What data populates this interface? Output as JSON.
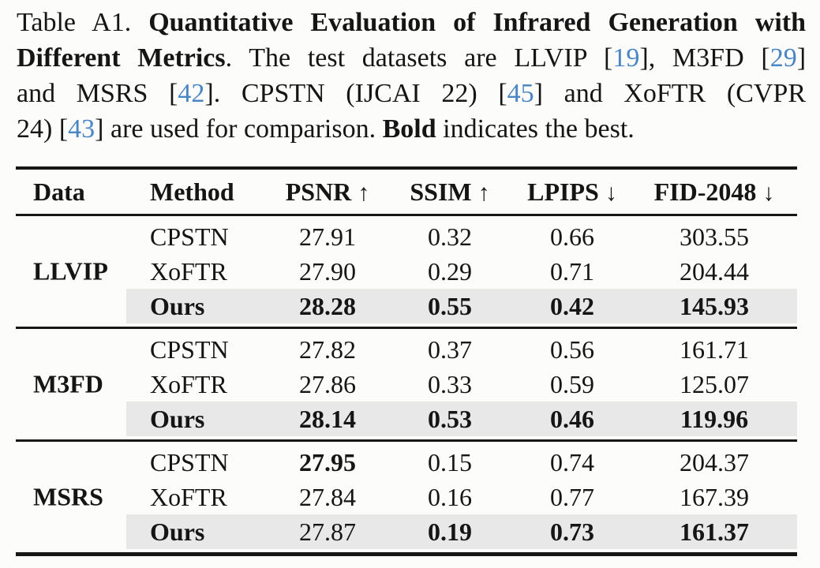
{
  "caption": {
    "lines": [
      {
        "segments": [
          {
            "t": "Table A1. "
          },
          {
            "t": "Quantitative Evaluation of Infrared Generation with"
          }
        ]
      },
      {
        "segments": [
          {
            "t": "Different Metrics"
          },
          {
            "t": ". The test datasets are LLVIP ["
          },
          {
            "t": "19"
          },
          {
            "t": "], M3FD ["
          },
          {
            "t": "29"
          },
          {
            "t": "]"
          }
        ]
      },
      {
        "segments": [
          {
            "t": "and MSRS ["
          },
          {
            "t": "42"
          },
          {
            "t": "]. CPSTN (IJCAI 22) ["
          },
          {
            "t": "45"
          },
          {
            "t": "] and XoFTR (CVPR"
          }
        ]
      },
      {
        "segments": [
          {
            "t": "24) ["
          },
          {
            "t": "43"
          },
          {
            "t": "] are used for comparison. "
          },
          {
            "t": "Bold"
          },
          {
            "t": " indicates the best."
          }
        ]
      }
    ]
  },
  "table": {
    "headers": [
      {
        "label": "Data",
        "arrow": ""
      },
      {
        "label": "Method",
        "arrow": ""
      },
      {
        "label": "PSNR",
        "arrow": "↑"
      },
      {
        "label": "SSIM",
        "arrow": "↑"
      },
      {
        "label": "LPIPS",
        "arrow": "↓"
      },
      {
        "label": "FID-2048",
        "arrow": "↓"
      }
    ],
    "highlight_color": "#e8e8e8",
    "citation_color": "#4a86c4",
    "sections": [
      {
        "dataset": "LLVIP",
        "rows": [
          {
            "highlight": false,
            "method": {
              "v": "CPSTN",
              "b": false
            },
            "psnr": {
              "v": "27.91",
              "b": false
            },
            "ssim": {
              "v": "0.32",
              "b": false
            },
            "lpips": {
              "v": "0.66",
              "b": false
            },
            "fid": {
              "v": "303.55",
              "b": false
            }
          },
          {
            "highlight": false,
            "method": {
              "v": "XoFTR",
              "b": false
            },
            "psnr": {
              "v": "27.90",
              "b": false
            },
            "ssim": {
              "v": "0.29",
              "b": false
            },
            "lpips": {
              "v": "0.71",
              "b": false
            },
            "fid": {
              "v": "204.44",
              "b": false
            }
          },
          {
            "highlight": true,
            "method": {
              "v": "Ours",
              "b": true
            },
            "psnr": {
              "v": "28.28",
              "b": true
            },
            "ssim": {
              "v": "0.55",
              "b": true
            },
            "lpips": {
              "v": "0.42",
              "b": true
            },
            "fid": {
              "v": "145.93",
              "b": true
            }
          }
        ]
      },
      {
        "dataset": "M3FD",
        "rows": [
          {
            "highlight": false,
            "method": {
              "v": "CPSTN",
              "b": false
            },
            "psnr": {
              "v": "27.82",
              "b": false
            },
            "ssim": {
              "v": "0.37",
              "b": false
            },
            "lpips": {
              "v": "0.56",
              "b": false
            },
            "fid": {
              "v": "161.71",
              "b": false
            }
          },
          {
            "highlight": false,
            "method": {
              "v": "XoFTR",
              "b": false
            },
            "psnr": {
              "v": "27.86",
              "b": false
            },
            "ssim": {
              "v": "0.33",
              "b": false
            },
            "lpips": {
              "v": "0.59",
              "b": false
            },
            "fid": {
              "v": "125.07",
              "b": false
            }
          },
          {
            "highlight": true,
            "method": {
              "v": "Ours",
              "b": true
            },
            "psnr": {
              "v": "28.14",
              "b": true
            },
            "ssim": {
              "v": "0.53",
              "b": true
            },
            "lpips": {
              "v": "0.46",
              "b": true
            },
            "fid": {
              "v": "119.96",
              "b": true
            }
          }
        ]
      },
      {
        "dataset": "MSRS",
        "rows": [
          {
            "highlight": false,
            "method": {
              "v": "CPSTN",
              "b": false
            },
            "psnr": {
              "v": "27.95",
              "b": true
            },
            "ssim": {
              "v": "0.15",
              "b": false
            },
            "lpips": {
              "v": "0.74",
              "b": false
            },
            "fid": {
              "v": "204.37",
              "b": false
            }
          },
          {
            "highlight": false,
            "method": {
              "v": "XoFTR",
              "b": false
            },
            "psnr": {
              "v": "27.84",
              "b": false
            },
            "ssim": {
              "v": "0.16",
              "b": false
            },
            "lpips": {
              "v": "0.77",
              "b": false
            },
            "fid": {
              "v": "167.39",
              "b": false
            }
          },
          {
            "highlight": true,
            "method": {
              "v": "Ours",
              "b": true
            },
            "psnr": {
              "v": "27.87",
              "b": false
            },
            "ssim": {
              "v": "0.19",
              "b": true
            },
            "lpips": {
              "v": "0.73",
              "b": true
            },
            "fid": {
              "v": "161.37",
              "b": true
            }
          }
        ]
      }
    ]
  }
}
